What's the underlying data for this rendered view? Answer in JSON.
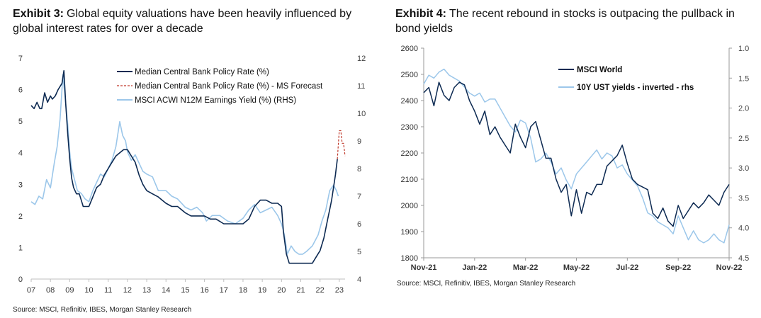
{
  "chart_data": [
    {
      "type": "line",
      "exhibit": "Exhibit 3:",
      "title": "Global equity valuations have been heavily influenced by global interest rates for over a decade",
      "source": "Source: MSCI, Refinitiv, IBES, Morgan Stanley Research",
      "x_ticks": [
        "07",
        "08",
        "09",
        "10",
        "11",
        "12",
        "13",
        "14",
        "15",
        "16",
        "17",
        "18",
        "19",
        "20",
        "21",
        "22",
        "23"
      ],
      "y_left_ticks": [
        "0",
        "1",
        "2",
        "3",
        "4",
        "5",
        "6",
        "7"
      ],
      "y_right_ticks": [
        "4",
        "5",
        "6",
        "7",
        "8",
        "9",
        "10",
        "11",
        "12"
      ],
      "ylim_left": [
        0,
        7
      ],
      "ylim_right": [
        4,
        12
      ],
      "xlim": [
        2007.0,
        2023.3
      ],
      "colors": {
        "policy": "#0d2a52",
        "forecast": "#c0392b",
        "yield": "#9cc7ea"
      },
      "series": [
        {
          "name": "Median Central Bank Policy Rate (%)",
          "axis": "left",
          "x": [
            2007.0,
            2007.15,
            2007.3,
            2007.45,
            2007.55,
            2007.7,
            2007.85,
            2008.0,
            2008.1,
            2008.25,
            2008.4,
            2008.5,
            2008.6,
            2008.7,
            2008.8,
            2008.9,
            2009.0,
            2009.1,
            2009.2,
            2009.35,
            2009.5,
            2009.7,
            2009.9,
            2010.0,
            2010.2,
            2010.4,
            2010.6,
            2010.8,
            2011.0,
            2011.2,
            2011.4,
            2011.6,
            2011.8,
            2012.0,
            2012.2,
            2012.4,
            2012.6,
            2012.8,
            2013.0,
            2013.3,
            2013.6,
            2014.0,
            2014.3,
            2014.6,
            2015.0,
            2015.3,
            2015.6,
            2016.0,
            2016.3,
            2016.6,
            2017.0,
            2017.3,
            2017.6,
            2018.0,
            2018.3,
            2018.6,
            2018.9,
            2019.2,
            2019.5,
            2019.8,
            2020.0,
            2020.1,
            2020.25,
            2020.4,
            2020.6,
            2020.8,
            2021.0,
            2021.2,
            2021.4,
            2021.6,
            2021.8,
            2022.0,
            2022.1,
            2022.2,
            2022.3,
            2022.4,
            2022.5,
            2022.6,
            2022.7,
            2022.8,
            2022.9
          ],
          "y": [
            5.5,
            5.4,
            5.6,
            5.4,
            5.4,
            5.9,
            5.6,
            5.8,
            5.7,
            5.8,
            6.0,
            6.1,
            6.2,
            6.6,
            5.5,
            4.6,
            3.8,
            3.2,
            2.9,
            2.7,
            2.7,
            2.3,
            2.3,
            2.3,
            2.6,
            2.9,
            3.0,
            3.3,
            3.5,
            3.7,
            3.9,
            4.0,
            4.1,
            4.1,
            3.9,
            3.7,
            3.3,
            3.0,
            2.8,
            2.7,
            2.6,
            2.4,
            2.3,
            2.3,
            2.1,
            2.0,
            2.0,
            2.0,
            1.9,
            1.9,
            1.75,
            1.75,
            1.75,
            1.75,
            1.9,
            2.3,
            2.5,
            2.5,
            2.4,
            2.4,
            2.3,
            1.5,
            0.8,
            0.5,
            0.5,
            0.5,
            0.5,
            0.5,
            0.5,
            0.5,
            0.7,
            0.9,
            1.1,
            1.3,
            1.6,
            1.9,
            2.2,
            2.5,
            2.9,
            3.3,
            3.8
          ]
        },
        {
          "name": "Median Central Bank Policy Rate (%) - MS Forecast",
          "axis": "left",
          "x": [
            2022.9,
            2023.0,
            2023.08,
            2023.15,
            2023.22,
            2023.3
          ],
          "y": [
            3.8,
            4.7,
            4.7,
            4.3,
            4.3,
            3.9
          ]
        },
        {
          "name": "MSCI ACWI N12M Earnings Yield (%) (RHS)",
          "axis": "right",
          "x": [
            2007.0,
            2007.2,
            2007.4,
            2007.6,
            2007.8,
            2008.0,
            2008.2,
            2008.35,
            2008.5,
            2008.65,
            2008.8,
            2008.9,
            2009.0,
            2009.1,
            2009.25,
            2009.4,
            2009.6,
            2009.8,
            2010.0,
            2010.2,
            2010.4,
            2010.6,
            2010.8,
            2011.0,
            2011.2,
            2011.4,
            2011.6,
            2011.75,
            2011.9,
            2012.0,
            2012.2,
            2012.4,
            2012.6,
            2012.8,
            2013.0,
            2013.3,
            2013.6,
            2014.0,
            2014.3,
            2014.6,
            2015.0,
            2015.3,
            2015.6,
            2015.9,
            2016.1,
            2016.4,
            2016.8,
            2017.2,
            2017.6,
            2018.0,
            2018.3,
            2018.6,
            2018.9,
            2019.2,
            2019.5,
            2019.8,
            2020.0,
            2020.15,
            2020.3,
            2020.5,
            2020.7,
            2020.9,
            2021.1,
            2021.3,
            2021.6,
            2021.9,
            2022.1,
            2022.3,
            2022.5,
            2022.7,
            2022.85,
            2022.95
          ],
          "y": [
            6.8,
            6.7,
            7.0,
            6.9,
            7.6,
            7.3,
            8.2,
            8.8,
            9.8,
            11.4,
            10.3,
            9.6,
            8.6,
            8.0,
            7.6,
            7.2,
            7.1,
            6.9,
            6.8,
            7.2,
            7.5,
            7.8,
            7.7,
            8.0,
            8.3,
            8.8,
            9.7,
            9.2,
            9.0,
            8.6,
            8.3,
            8.5,
            8.2,
            7.9,
            7.8,
            7.7,
            7.2,
            7.2,
            7.0,
            6.9,
            6.6,
            6.5,
            6.6,
            6.4,
            6.1,
            6.3,
            6.3,
            6.1,
            6.0,
            6.2,
            6.5,
            6.7,
            6.4,
            6.5,
            6.6,
            6.3,
            6.0,
            5.6,
            4.9,
            5.2,
            5.0,
            4.9,
            4.9,
            5.0,
            5.2,
            5.6,
            6.1,
            6.5,
            7.2,
            7.4,
            7.2,
            7.0
          ]
        }
      ]
    },
    {
      "type": "line",
      "exhibit": "Exhibit 4:",
      "title": "The recent rebound in stocks is outpacing the pullback in bond yields",
      "source": "Source: MSCI, Refinitiv, IBES, Morgan Stanley Research",
      "x_ticks": [
        "Nov-21",
        "Jan-22",
        "Mar-22",
        "May-22",
        "Jul-22",
        "Sep-22",
        "Nov-22"
      ],
      "y_left_ticks": [
        "1800",
        "1900",
        "2000",
        "2100",
        "2200",
        "2300",
        "2400",
        "2500",
        "2600"
      ],
      "y_right_ticks": [
        "1.0",
        "1.5",
        "2.0",
        "2.5",
        "3.0",
        "3.5",
        "4.0",
        "4.5"
      ],
      "ylim_left": [
        1800,
        2600
      ],
      "ylim_right": [
        1.0,
        4.5
      ],
      "right_inverted": true,
      "xlim": [
        0,
        12
      ],
      "colors": {
        "msci": "#0d2a52",
        "ust": "#9cc7ea"
      },
      "series": [
        {
          "name": "MSCI World",
          "axis": "left",
          "x": [
            0,
            0.2,
            0.4,
            0.6,
            0.8,
            1.0,
            1.2,
            1.4,
            1.6,
            1.8,
            2.0,
            2.2,
            2.4,
            2.6,
            2.8,
            3.0,
            3.2,
            3.4,
            3.6,
            3.8,
            4.0,
            4.2,
            4.4,
            4.6,
            4.8,
            5.0,
            5.2,
            5.4,
            5.6,
            5.8,
            6.0,
            6.2,
            6.4,
            6.6,
            6.8,
            7.0,
            7.2,
            7.4,
            7.6,
            7.8,
            8.0,
            8.2,
            8.4,
            8.6,
            8.8,
            9.0,
            9.2,
            9.4,
            9.6,
            9.8,
            10.0,
            10.2,
            10.4,
            10.6,
            10.8,
            11.0,
            11.2,
            11.4,
            11.6,
            11.8,
            12.0
          ],
          "y": [
            2430,
            2450,
            2380,
            2470,
            2420,
            2400,
            2450,
            2470,
            2460,
            2400,
            2360,
            2310,
            2360,
            2270,
            2300,
            2260,
            2230,
            2200,
            2310,
            2260,
            2220,
            2300,
            2320,
            2250,
            2180,
            2180,
            2100,
            2050,
            2080,
            1960,
            2060,
            1970,
            2050,
            2040,
            2080,
            2080,
            2150,
            2170,
            2190,
            2230,
            2160,
            2100,
            2080,
            2070,
            2060,
            1970,
            1950,
            1990,
            1940,
            1920,
            2000,
            1950,
            1980,
            2010,
            1990,
            2010,
            2040,
            2020,
            2000,
            2050,
            2080
          ]
        },
        {
          "name": "10Y UST yields - inverted - rhs",
          "axis": "right",
          "x": [
            0,
            0.2,
            0.4,
            0.6,
            0.8,
            1.0,
            1.2,
            1.4,
            1.6,
            1.8,
            2.0,
            2.2,
            2.4,
            2.6,
            2.8,
            3.0,
            3.2,
            3.4,
            3.6,
            3.8,
            4.0,
            4.2,
            4.4,
            4.6,
            4.8,
            5.0,
            5.2,
            5.4,
            5.6,
            5.8,
            6.0,
            6.2,
            6.4,
            6.6,
            6.8,
            7.0,
            7.2,
            7.4,
            7.6,
            7.8,
            8.0,
            8.2,
            8.4,
            8.6,
            8.8,
            9.0,
            9.2,
            9.4,
            9.6,
            9.8,
            10.0,
            10.2,
            10.4,
            10.6,
            10.8,
            11.0,
            11.2,
            11.4,
            11.6,
            11.8,
            12.0
          ],
          "y": [
            1.6,
            1.45,
            1.5,
            1.4,
            1.35,
            1.45,
            1.5,
            1.55,
            1.65,
            1.75,
            1.8,
            1.75,
            1.9,
            1.85,
            1.85,
            2.0,
            2.15,
            2.3,
            2.4,
            2.2,
            2.25,
            2.5,
            2.9,
            2.85,
            2.75,
            2.9,
            3.1,
            3.0,
            3.2,
            3.35,
            3.1,
            3.0,
            2.9,
            2.8,
            2.7,
            2.85,
            2.75,
            2.8,
            3.0,
            2.95,
            3.1,
            3.2,
            3.3,
            3.5,
            3.75,
            3.8,
            3.9,
            3.95,
            4.0,
            4.1,
            3.8,
            4.0,
            4.2,
            4.05,
            4.2,
            4.25,
            4.2,
            4.1,
            4.2,
            4.25,
            3.95
          ]
        }
      ]
    }
  ]
}
